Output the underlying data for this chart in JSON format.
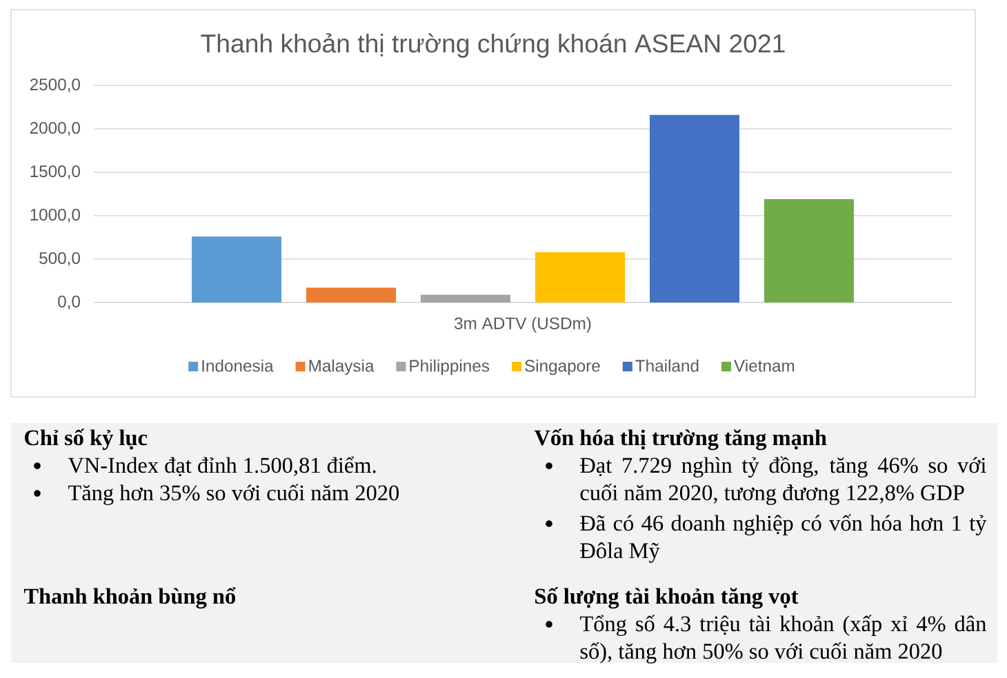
{
  "chart_data": [
    {
      "type": "bar",
      "title": "Thanh khoản thị trường chứng khoán ASEAN 2021",
      "categories": [
        "3m ADTV (USDm)"
      ],
      "series": [
        {
          "name": "Indonesia",
          "color": "#5b9bd5",
          "values": [
            760
          ]
        },
        {
          "name": "Malaysia",
          "color": "#ed7d31",
          "values": [
            170
          ]
        },
        {
          "name": "Philippines",
          "color": "#a5a5a5",
          "values": [
            90
          ]
        },
        {
          "name": "Singapore",
          "color": "#ffc000",
          "values": [
            580
          ]
        },
        {
          "name": "Thailand",
          "color": "#4472c4",
          "values": [
            2160
          ]
        },
        {
          "name": "Vietnam",
          "color": "#70ad47",
          "values": [
            1190
          ]
        }
      ],
      "ylim": [
        0,
        2500
      ],
      "yticks": [
        {
          "value": 0,
          "label": "0,0"
        },
        {
          "value": 500,
          "label": "500,0"
        },
        {
          "value": 1000,
          "label": "1000,0"
        },
        {
          "value": 1500,
          "label": "1500,0"
        },
        {
          "value": 2000,
          "label": "2000,0"
        },
        {
          "value": 2500,
          "label": "2500,0"
        }
      ],
      "grid": "y",
      "legend": "bottom"
    },
    {
      "type": "other",
      "annotations": [
        "Chỉ số kỷ lục",
        "VN-Index đạt đỉnh 1.500,81 điểm.",
        "Tăng hơn 35% so với cuối năm 2020",
        "Thanh khoản bùng nổ",
        "Vốn hóa thị trường tăng mạnh",
        "Đạt 7.729 nghìn tỷ đồng, tăng 46% so với cuối năm 2020, tương đương 122,8% GDP",
        "Đã có 46 doanh nghiệp có vốn hóa hơn 1 tỷ Đôla Mỹ",
        "Số lượng tài khoản tăng vọt",
        "Tổng số 4.3 triệu tài khoản (xấp xỉ 4% dân số), tăng hơn 50% so với cuối năm 2020"
      ]
    }
  ]
}
